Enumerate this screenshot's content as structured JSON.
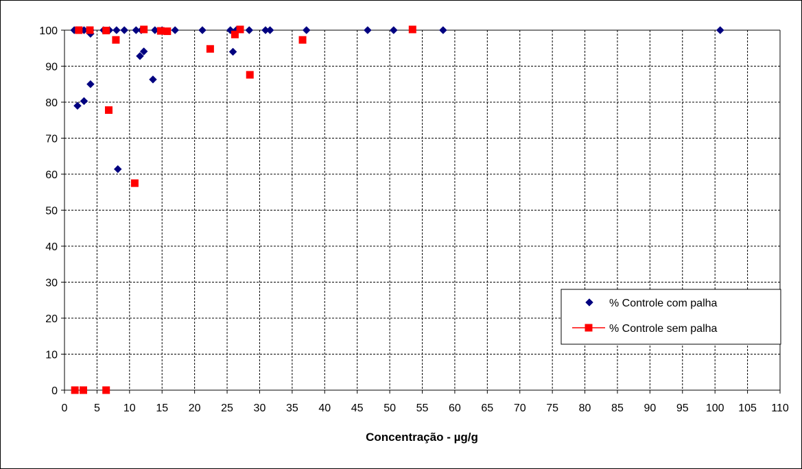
{
  "chart_data": {
    "type": "scatter",
    "title": "",
    "xlabel": "Concentração - µg/g",
    "ylabel": "",
    "xlim": [
      0,
      110
    ],
    "ylim": [
      0,
      100
    ],
    "x_ticks": [
      0,
      5,
      10,
      15,
      20,
      25,
      30,
      35,
      40,
      45,
      50,
      55,
      60,
      65,
      70,
      75,
      80,
      85,
      90,
      95,
      100,
      105,
      110
    ],
    "y_ticks": [
      0,
      10,
      20,
      30,
      40,
      50,
      60,
      70,
      80,
      90,
      100
    ],
    "grid": true,
    "legend_position": "right",
    "series": [
      {
        "name": "% Controle com palha",
        "marker": "diamond",
        "color": "#000080",
        "points": [
          [
            1.5,
            100
          ],
          [
            2.0,
            100
          ],
          [
            3.0,
            100
          ],
          [
            3.7,
            100
          ],
          [
            4.0,
            99
          ],
          [
            4.0,
            100
          ],
          [
            6.0,
            100
          ],
          [
            6.9,
            100
          ],
          [
            8.0,
            100
          ],
          [
            9.2,
            100
          ],
          [
            11.0,
            100
          ],
          [
            11.8,
            100
          ],
          [
            13.9,
            100
          ],
          [
            15.0,
            100
          ],
          [
            17.0,
            100
          ],
          [
            21.2,
            100
          ],
          [
            25.5,
            100
          ],
          [
            26.4,
            100
          ],
          [
            28.4,
            100
          ],
          [
            30.9,
            100
          ],
          [
            31.6,
            100
          ],
          [
            37.2,
            100
          ],
          [
            46.6,
            100
          ],
          [
            50.6,
            100
          ],
          [
            58.2,
            100
          ],
          [
            100.8,
            100
          ],
          [
            2.0,
            79
          ],
          [
            3.0,
            80.3
          ],
          [
            4.0,
            85
          ],
          [
            8.2,
            61.4
          ],
          [
            11.6,
            92.8
          ],
          [
            12.2,
            94.1
          ],
          [
            13.6,
            86.3
          ],
          [
            25.9,
            94
          ]
        ]
      },
      {
        "name": "% Controle sem palha",
        "marker": "square",
        "color": "#FF0000",
        "points": [
          [
            1.6,
            0
          ],
          [
            2.9,
            0
          ],
          [
            6.4,
            0
          ],
          [
            2.2,
            100
          ],
          [
            3.9,
            100
          ],
          [
            6.4,
            99.9
          ],
          [
            7.9,
            97.3
          ],
          [
            6.8,
            77.8
          ],
          [
            10.8,
            57.5
          ],
          [
            12.2,
            100.2
          ],
          [
            14.8,
            99.8
          ],
          [
            15.8,
            99.7
          ],
          [
            22.4,
            94.8
          ],
          [
            26.2,
            98.8
          ],
          [
            27.0,
            100.2
          ],
          [
            28.5,
            87.6
          ],
          [
            36.6,
            97.3
          ],
          [
            53.5,
            100.2
          ]
        ]
      }
    ]
  }
}
